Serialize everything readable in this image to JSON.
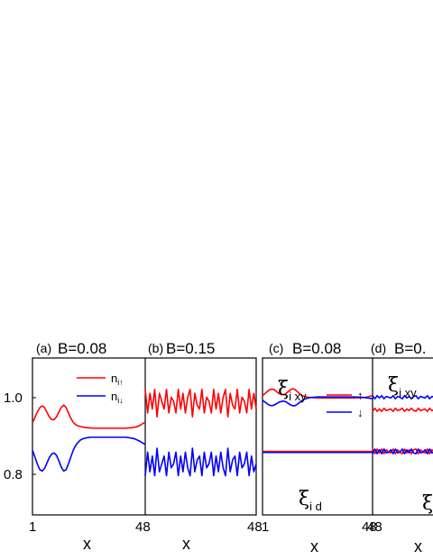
{
  "colors": {
    "up": "#ff0000",
    "down": "#0000ff",
    "frame": "#000000"
  },
  "chart_data": [
    {
      "type": "line",
      "tag": "(a)",
      "title": "B=0.08",
      "xlabel": "x",
      "xlim": [
        1,
        48
      ],
      "ylim": [
        0.7,
        1.1
      ],
      "yticks": [
        "0.8",
        "1.0"
      ],
      "xtick_left": "1",
      "xtick_right": "",
      "legend": {
        "up": "n",
        "up_sub": "i↑",
        "down": "n",
        "down_sub": "i↓"
      },
      "series": [
        {
          "name": "n_i↑",
          "color": "up",
          "x": [
            1,
            2,
            3,
            4,
            5,
            6,
            7,
            8,
            9,
            10,
            11,
            12,
            13,
            14,
            15,
            16,
            17,
            18,
            19,
            20,
            21,
            22,
            23,
            24,
            25,
            26,
            27,
            28,
            29,
            30,
            31,
            32,
            33,
            34,
            35,
            36,
            37,
            38,
            39,
            40,
            41,
            42,
            43,
            44,
            45,
            46,
            47,
            48
          ],
          "y": [
            0.935,
            0.948,
            0.962,
            0.973,
            0.978,
            0.974,
            0.962,
            0.95,
            0.943,
            0.943,
            0.95,
            0.962,
            0.974,
            0.98,
            0.974,
            0.96,
            0.946,
            0.936,
            0.93,
            0.927,
            0.925,
            0.924,
            0.923,
            0.922,
            0.922,
            0.921,
            0.921,
            0.921,
            0.921,
            0.921,
            0.921,
            0.921,
            0.921,
            0.921,
            0.921,
            0.921,
            0.921,
            0.921,
            0.921,
            0.921,
            0.922,
            0.922,
            0.923,
            0.924,
            0.926,
            0.929,
            0.933,
            0.937
          ]
        },
        {
          "name": "n_i↓",
          "color": "down",
          "x": [
            1,
            2,
            3,
            4,
            5,
            6,
            7,
            8,
            9,
            10,
            11,
            12,
            13,
            14,
            15,
            16,
            17,
            18,
            19,
            20,
            21,
            22,
            23,
            24,
            25,
            26,
            27,
            28,
            29,
            30,
            31,
            32,
            33,
            34,
            35,
            36,
            37,
            38,
            39,
            40,
            41,
            42,
            43,
            44,
            45,
            46,
            47,
            48
          ],
          "y": [
            0.865,
            0.848,
            0.83,
            0.816,
            0.812,
            0.818,
            0.832,
            0.846,
            0.855,
            0.858,
            0.852,
            0.838,
            0.822,
            0.812,
            0.815,
            0.83,
            0.848,
            0.865,
            0.877,
            0.885,
            0.891,
            0.894,
            0.896,
            0.897,
            0.898,
            0.898,
            0.898,
            0.898,
            0.898,
            0.898,
            0.898,
            0.898,
            0.898,
            0.898,
            0.898,
            0.898,
            0.898,
            0.898,
            0.898,
            0.898,
            0.897,
            0.896,
            0.895,
            0.893,
            0.89,
            0.887,
            0.883,
            0.88
          ]
        }
      ]
    },
    {
      "type": "line",
      "tag": "(b)",
      "title": "B=0.15",
      "xlabel": "x",
      "xlim": [
        1,
        48
      ],
      "ylim": [
        0.7,
        1.1
      ],
      "yticks": [],
      "xtick_left": "48",
      "xtick_right": "48",
      "series": [
        {
          "name": "n_i↑",
          "color": "up",
          "x": [
            1,
            2,
            3,
            4,
            5,
            6,
            7,
            8,
            9,
            10,
            11,
            12,
            13,
            14,
            15,
            16,
            17,
            18,
            19,
            20,
            21,
            22,
            23,
            24,
            25,
            26,
            27,
            28,
            29,
            30,
            31,
            32,
            33,
            34,
            35,
            36,
            37,
            38,
            39,
            40,
            41,
            42,
            43,
            44,
            45,
            46,
            47,
            48
          ],
          "y": [
            1.02,
            0.96,
            1.01,
            0.97,
            1.02,
            0.95,
            1.01,
            0.99,
            0.97,
            1.02,
            0.96,
            1.0,
            0.99,
            0.96,
            1.02,
            0.97,
            1.01,
            0.96,
            1.0,
            1.02,
            0.95,
            1.01,
            0.98,
            0.97,
            1.02,
            0.96,
            1.0,
            0.99,
            0.96,
            1.02,
            0.97,
            1.01,
            0.96,
            1.0,
            1.02,
            0.95,
            1.01,
            0.98,
            0.97,
            1.02,
            0.96,
            1.0,
            0.99,
            0.96,
            1.02,
            0.97,
            1.01,
            0.97
          ]
        },
        {
          "name": "n_i↓",
          "color": "down",
          "x": [
            1,
            2,
            3,
            4,
            5,
            6,
            7,
            8,
            9,
            10,
            11,
            12,
            13,
            14,
            15,
            16,
            17,
            18,
            19,
            20,
            21,
            22,
            23,
            24,
            25,
            26,
            27,
            28,
            29,
            30,
            31,
            32,
            33,
            34,
            35,
            36,
            37,
            38,
            39,
            40,
            41,
            42,
            43,
            44,
            45,
            46,
            47,
            48
          ],
          "y": [
            0.8,
            0.86,
            0.81,
            0.85,
            0.8,
            0.87,
            0.81,
            0.83,
            0.85,
            0.8,
            0.86,
            0.82,
            0.83,
            0.86,
            0.8,
            0.85,
            0.81,
            0.86,
            0.82,
            0.8,
            0.87,
            0.81,
            0.84,
            0.85,
            0.8,
            0.86,
            0.82,
            0.83,
            0.86,
            0.8,
            0.85,
            0.81,
            0.86,
            0.82,
            0.8,
            0.87,
            0.81,
            0.84,
            0.85,
            0.8,
            0.86,
            0.82,
            0.83,
            0.86,
            0.8,
            0.85,
            0.81,
            0.83
          ]
        }
      ]
    },
    {
      "type": "line",
      "tag": "(c)",
      "title": "B=0.08",
      "xlabel": "x",
      "xlim": [
        1,
        48
      ],
      "ylim": [
        0,
        1
      ],
      "xtick_left": "1",
      "xtick_right": "48",
      "labels": {
        "xi": "ξ",
        "upper_sub": "i xy",
        "lower_sub": "i d"
      },
      "legend": {
        "up": "↑",
        "down": "↓"
      },
      "series": [
        {
          "name": "ξ_i xy ↑",
          "color": "up",
          "x": [
            1,
            2,
            3,
            4,
            5,
            6,
            7,
            8,
            9,
            10,
            11,
            12,
            13,
            14,
            15,
            16,
            17,
            18,
            19,
            20,
            21,
            22,
            23,
            24,
            25,
            26,
            27,
            28,
            29,
            30,
            31,
            32,
            33,
            34,
            35,
            36,
            37,
            38,
            39,
            40,
            41,
            42,
            43,
            44,
            45,
            46,
            47,
            48
          ],
          "y": [
            0.76,
            0.772,
            0.786,
            0.797,
            0.802,
            0.798,
            0.786,
            0.774,
            0.767,
            0.767,
            0.774,
            0.786,
            0.798,
            0.804,
            0.798,
            0.784,
            0.77,
            0.76,
            0.754,
            0.751,
            0.749,
            0.748,
            0.747,
            0.746,
            0.746,
            0.745,
            0.745,
            0.745,
            0.745,
            0.745,
            0.745,
            0.745,
            0.745,
            0.745,
            0.745,
            0.745,
            0.745,
            0.745,
            0.745,
            0.745,
            0.746,
            0.746,
            0.747,
            0.748,
            0.75,
            0.753,
            0.757,
            0.761
          ]
        },
        {
          "name": "ξ_i xy ↓",
          "color": "down",
          "x": [
            1,
            2,
            3,
            4,
            5,
            6,
            7,
            8,
            9,
            10,
            11,
            12,
            13,
            14,
            15,
            16,
            17,
            18,
            19,
            20,
            21,
            22,
            23,
            24,
            25,
            26,
            27,
            28,
            29,
            30,
            31,
            32,
            33,
            34,
            35,
            36,
            37,
            38,
            39,
            40,
            41,
            42,
            43,
            44,
            45,
            46,
            47,
            48
          ],
          "y": [
            0.73,
            0.72,
            0.708,
            0.699,
            0.696,
            0.7,
            0.709,
            0.718,
            0.723,
            0.725,
            0.721,
            0.711,
            0.701,
            0.695,
            0.697,
            0.707,
            0.719,
            0.73,
            0.738,
            0.743,
            0.747,
            0.749,
            0.75,
            0.751,
            0.752,
            0.752,
            0.752,
            0.752,
            0.752,
            0.752,
            0.752,
            0.752,
            0.752,
            0.752,
            0.752,
            0.752,
            0.752,
            0.752,
            0.752,
            0.752,
            0.751,
            0.751,
            0.75,
            0.749,
            0.747,
            0.745,
            0.743,
            0.74
          ]
        },
        {
          "name": "ξ_i d ↑",
          "color": "up",
          "x": [
            1,
            48
          ],
          "y": [
            0.405,
            0.405
          ]
        },
        {
          "name": "ξ_i d ↓",
          "color": "down",
          "x": [
            1,
            48
          ],
          "y": [
            0.398,
            0.398
          ]
        }
      ]
    },
    {
      "type": "line",
      "tag": "(d)",
      "title": "B=0.",
      "xlabel": "x",
      "xlim": [
        1,
        48
      ],
      "ylim": [
        0,
        1
      ],
      "xtick_left": "48",
      "xtick_right": "",
      "labels": {
        "xi": "ξ",
        "upper_sub": "i xy",
        "lower_xi": "ξ"
      },
      "series": [
        {
          "name": "ξ_i xy ↓",
          "color": "down",
          "x": [
            1,
            2,
            3,
            4,
            5,
            6,
            7,
            8,
            9,
            10,
            11,
            12,
            13,
            14,
            15,
            16,
            17,
            18,
            19,
            20,
            21,
            22,
            23,
            24,
            25,
            26,
            27,
            28,
            29,
            30,
            31,
            32,
            33,
            34,
            35,
            36,
            37,
            38,
            39,
            40,
            41,
            42,
            43,
            44,
            45,
            46,
            47,
            48
          ],
          "y": [
            0.76,
            0.74,
            0.76,
            0.745,
            0.76,
            0.74,
            0.755,
            0.75,
            0.745,
            0.76,
            0.74,
            0.755,
            0.75,
            0.74,
            0.76,
            0.745,
            0.755,
            0.74,
            0.755,
            0.76,
            0.74,
            0.755,
            0.75,
            0.745,
            0.76,
            0.74,
            0.755,
            0.75,
            0.74,
            0.76,
            0.745,
            0.755,
            0.74,
            0.755,
            0.76,
            0.74,
            0.755,
            0.75,
            0.745,
            0.76,
            0.74,
            0.755,
            0.75,
            0.74,
            0.76,
            0.745,
            0.755,
            0.75
          ]
        },
        {
          "name": "ξ_i xy ↑",
          "color": "up",
          "x": [
            1,
            2,
            3,
            4,
            5,
            6,
            7,
            8,
            9,
            10,
            11,
            12,
            13,
            14,
            15,
            16,
            17,
            18,
            19,
            20,
            21,
            22,
            23,
            24,
            25,
            26,
            27,
            28,
            29,
            30,
            31,
            32,
            33,
            34,
            35,
            36,
            37,
            38,
            39,
            40,
            41,
            42,
            43,
            44,
            45,
            46,
            47,
            48
          ],
          "y": [
            0.66,
            0.68,
            0.66,
            0.675,
            0.66,
            0.68,
            0.665,
            0.67,
            0.675,
            0.66,
            0.68,
            0.665,
            0.67,
            0.68,
            0.66,
            0.675,
            0.665,
            0.68,
            0.665,
            0.66,
            0.68,
            0.665,
            0.67,
            0.675,
            0.66,
            0.68,
            0.665,
            0.67,
            0.68,
            0.66,
            0.675,
            0.665,
            0.68,
            0.665,
            0.66,
            0.68,
            0.665,
            0.67,
            0.675,
            0.66,
            0.68,
            0.665,
            0.67,
            0.68,
            0.66,
            0.675,
            0.665,
            0.67
          ]
        },
        {
          "name": "ξ_i d ↑",
          "color": "up",
          "x": [
            1,
            2,
            3,
            4,
            5,
            6,
            7,
            8,
            9,
            10,
            11,
            12,
            13,
            14,
            15,
            16,
            17,
            18,
            19,
            20,
            21,
            22,
            23,
            24,
            25,
            26,
            27,
            28,
            29,
            30,
            31,
            32,
            33,
            34,
            35,
            36,
            37,
            38,
            39,
            40,
            41,
            42,
            43,
            44,
            45,
            46,
            47,
            48
          ],
          "y": [
            0.42,
            0.39,
            0.42,
            0.395,
            0.42,
            0.39,
            0.415,
            0.4,
            0.395,
            0.42,
            0.39,
            0.415,
            0.4,
            0.39,
            0.42,
            0.395,
            0.415,
            0.39,
            0.415,
            0.42,
            0.39,
            0.415,
            0.4,
            0.395,
            0.42,
            0.39,
            0.415,
            0.4,
            0.39,
            0.42,
            0.395,
            0.415,
            0.39,
            0.415,
            0.42,
            0.39,
            0.415,
            0.4,
            0.395,
            0.42,
            0.39,
            0.415,
            0.4,
            0.39,
            0.42,
            0.395,
            0.415,
            0.4
          ]
        },
        {
          "name": "ξ_i d ↓",
          "color": "down",
          "x": [
            1,
            2,
            3,
            4,
            5,
            6,
            7,
            8,
            9,
            10,
            11,
            12,
            13,
            14,
            15,
            16,
            17,
            18,
            19,
            20,
            21,
            22,
            23,
            24,
            25,
            26,
            27,
            28,
            29,
            30,
            31,
            32,
            33,
            34,
            35,
            36,
            37,
            38,
            39,
            40,
            41,
            42,
            43,
            44,
            45,
            46,
            47,
            48
          ],
          "y": [
            0.39,
            0.42,
            0.39,
            0.415,
            0.39,
            0.42,
            0.395,
            0.4,
            0.415,
            0.39,
            0.42,
            0.395,
            0.4,
            0.42,
            0.39,
            0.415,
            0.395,
            0.42,
            0.395,
            0.39,
            0.42,
            0.395,
            0.4,
            0.415,
            0.39,
            0.42,
            0.395,
            0.4,
            0.42,
            0.39,
            0.415,
            0.395,
            0.42,
            0.395,
            0.39,
            0.42,
            0.395,
            0.4,
            0.415,
            0.39,
            0.42,
            0.395,
            0.4,
            0.42,
            0.39,
            0.415,
            0.395,
            0.4
          ]
        }
      ]
    }
  ]
}
